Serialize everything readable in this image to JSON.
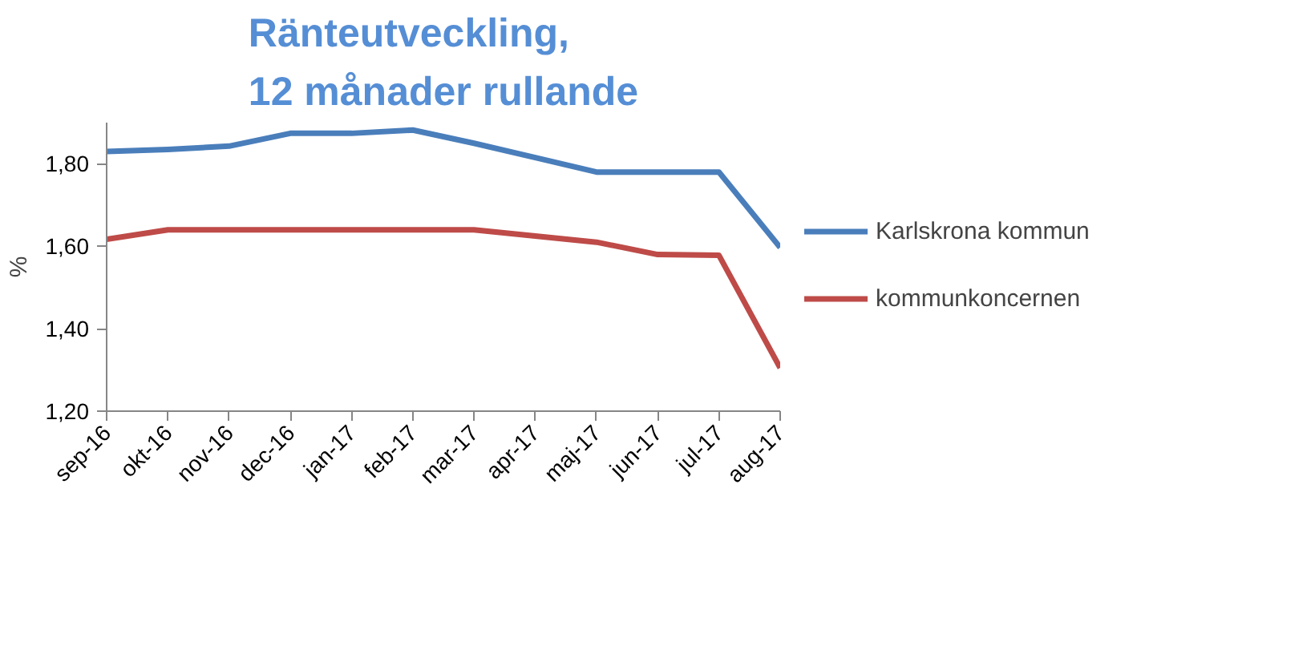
{
  "chart_data": {
    "type": "line",
    "title": "Ränteutveckling,\n12 månader rullande",
    "ylabel": "%",
    "categories": [
      "sep-16",
      "okt-16",
      "nov-16",
      "dec-16",
      "jan-17",
      "feb-17",
      "mar-17",
      "apr-17",
      "maj-17",
      "jun-17",
      "jul-17",
      "aug-17"
    ],
    "series": [
      {
        "name": "Karlskrona kommun",
        "color": "#4a7ebb",
        "values": [
          1.83,
          1.835,
          1.843,
          1.874,
          1.874,
          1.882,
          1.85,
          1.815,
          1.78,
          1.78,
          1.78,
          1.597
        ]
      },
      {
        "name": "kommunkoncernen",
        "color": "#be4b48",
        "values": [
          1.617,
          1.64,
          1.64,
          1.64,
          1.64,
          1.64,
          1.64,
          1.625,
          1.61,
          1.58,
          1.578,
          1.305
        ]
      }
    ],
    "ylim": [
      1.2,
      1.9
    ],
    "yticks": [
      {
        "value": 1.2,
        "label": "1,20"
      },
      {
        "value": 1.4,
        "label": "1,40"
      },
      {
        "value": 1.6,
        "label": "1,60"
      },
      {
        "value": 1.8,
        "label": "1,80"
      }
    ],
    "grid": false,
    "legend": "right",
    "line_style": "solid",
    "marker": "none"
  }
}
